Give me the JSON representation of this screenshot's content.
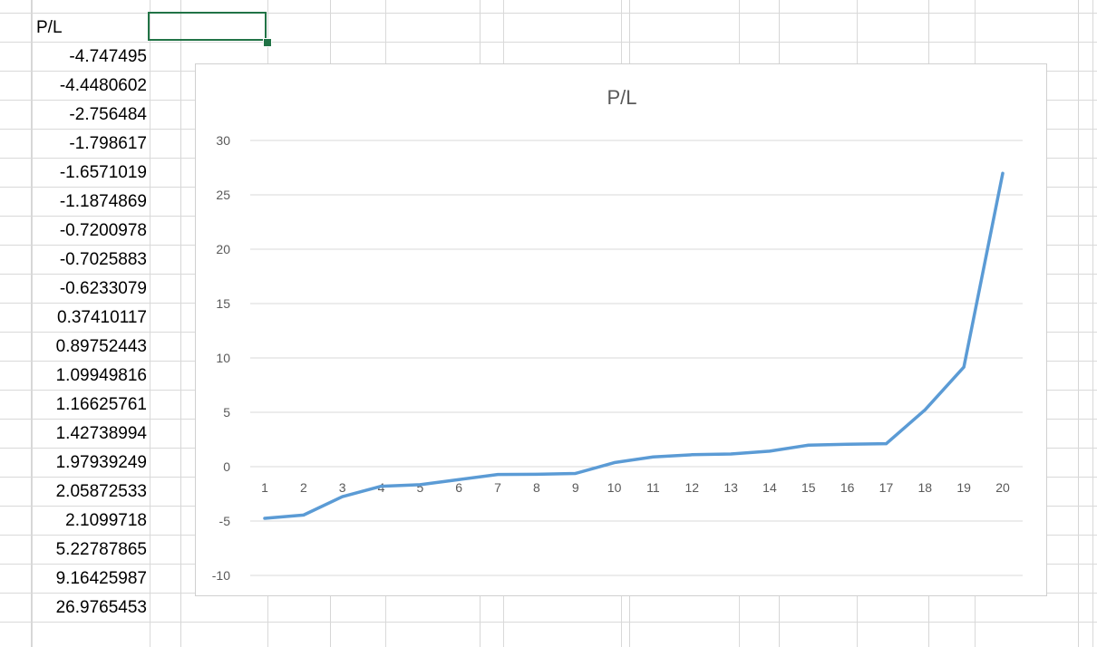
{
  "sheet": {
    "header": "P/L",
    "values": [
      "-4.747495",
      "-4.4480602",
      "-2.756484",
      "-1.798617",
      "-1.6571019",
      "-1.1874869",
      "-0.7200978",
      "-0.7025883",
      "-0.6233079",
      "0.37410117",
      "0.89752443",
      "1.09949816",
      "1.16625761",
      "1.42738994",
      "1.97939249",
      "2.05872533",
      "2.1099718",
      "5.22787865",
      "9.16425987",
      "26.9765453"
    ],
    "selection_color": "#217346"
  },
  "chart_data": {
    "type": "line",
    "title": "P/L",
    "xlabel": "",
    "ylabel": "",
    "categories": [
      "1",
      "2",
      "3",
      "4",
      "5",
      "6",
      "7",
      "8",
      "9",
      "10",
      "11",
      "12",
      "13",
      "14",
      "15",
      "16",
      "17",
      "18",
      "19",
      "20"
    ],
    "values": [
      -4.747495,
      -4.4480602,
      -2.756484,
      -1.798617,
      -1.6571019,
      -1.1874869,
      -0.7200978,
      -0.7025883,
      -0.6233079,
      0.37410117,
      0.89752443,
      1.09949816,
      1.16625761,
      1.42738994,
      1.97939249,
      2.05872533,
      2.1099718,
      5.22787865,
      9.16425987,
      26.9765453
    ],
    "ylim": [
      -10,
      30
    ],
    "yticks": [
      "30",
      "25",
      "20",
      "15",
      "10",
      "5",
      "0",
      "-5",
      "-10"
    ],
    "grid": true,
    "legend": "none",
    "line_color": "#5b9bd5"
  }
}
